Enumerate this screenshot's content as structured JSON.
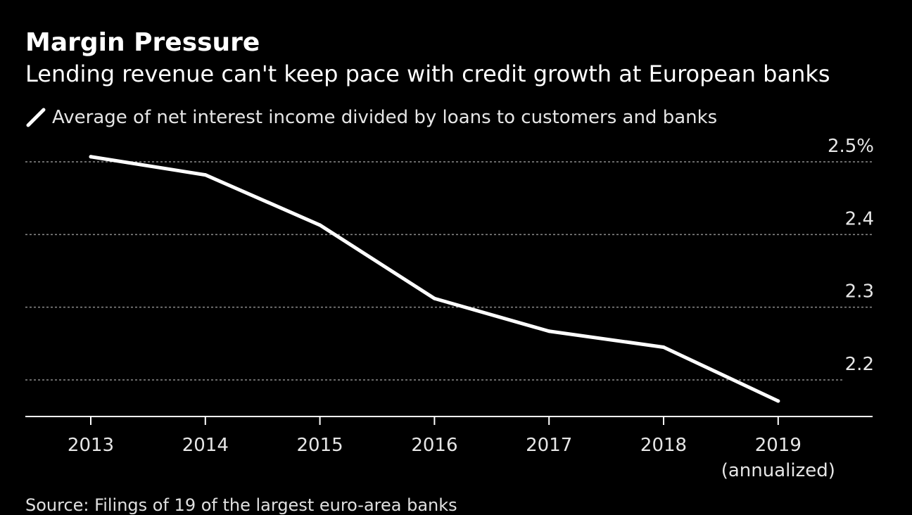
{
  "colors": {
    "background": "#000000",
    "line": "#ffffff",
    "grid": "#8c8c8c",
    "text": "#ffffff"
  },
  "header": {
    "title": "Margin Pressure",
    "subtitle": "Lending revenue can't keep pace with credit growth at European banks"
  },
  "legend": {
    "label": "Average of net interest income divided by loans to customers and banks",
    "icon": "slash-line-icon"
  },
  "source": "Source: Filings of 19 of the largest euro-area banks",
  "chart_data": {
    "type": "line",
    "x": [
      "2013",
      "2014",
      "2015",
      "2016",
      "2017",
      "2018",
      "2019"
    ],
    "x_tick_labels": [
      [
        "2013"
      ],
      [
        "2014"
      ],
      [
        "2015"
      ],
      [
        "2016"
      ],
      [
        "2017"
      ],
      [
        "2018"
      ],
      [
        "2019",
        "(annualized)"
      ]
    ],
    "series": [
      {
        "name": "Average of net interest income divided by loans to customers and banks",
        "values": [
          2.507,
          2.482,
          2.413,
          2.312,
          2.267,
          2.245,
          2.171
        ]
      }
    ],
    "y_ticks": [
      2.2,
      2.3,
      2.4,
      2.5
    ],
    "y_tick_labels": [
      "2.2",
      "2.3",
      "2.4",
      "2.5%"
    ],
    "ylim": [
      2.15,
      2.5
    ],
    "grid": "horizontal dashed",
    "legend_position": "top-left",
    "y_axis_side": "right"
  }
}
